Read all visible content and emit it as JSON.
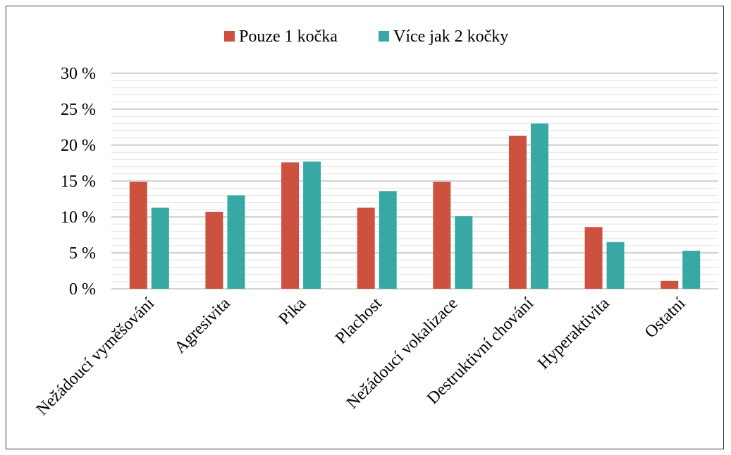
{
  "chart_data": {
    "type": "bar",
    "categories": [
      "Nežádoucí vyměšování",
      "Agresivita",
      "Pika",
      "Plachost",
      "Nežádoucí vokalizace",
      "Destruktivní chování",
      "Hyperaktivita",
      "Ostatní"
    ],
    "series": [
      {
        "name": "Pouze 1 kočka",
        "color": "#cc523f",
        "values": [
          14.9,
          10.7,
          17.6,
          11.3,
          14.9,
          21.3,
          8.6,
          1.1
        ]
      },
      {
        "name": "Více jak 2 kočky",
        "color": "#38a8a5",
        "values": [
          11.3,
          13.0,
          17.7,
          13.6,
          10.1,
          23.0,
          6.5,
          5.3
        ]
      }
    ],
    "ylim": [
      0,
      30
    ],
    "yticks": [
      0,
      5,
      10,
      15,
      20,
      25,
      30
    ],
    "ytick_labels": [
      "0 %",
      "5 %",
      "10 %",
      "15 %",
      "20 %",
      "25 %",
      "30 %"
    ],
    "grid": true,
    "minor_grid": true,
    "legend_position": "top-center"
  }
}
